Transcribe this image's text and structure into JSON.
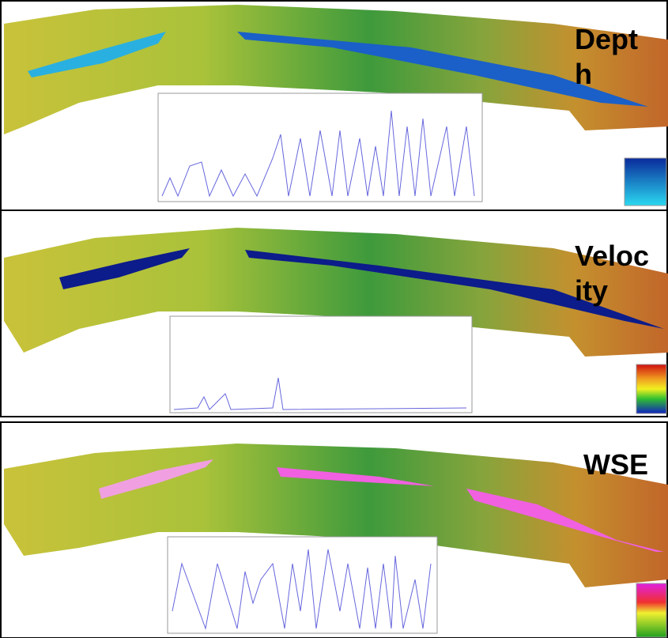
{
  "panels": [
    {
      "label": "Depth"
    },
    {
      "label": "Velocity"
    },
    {
      "label": "WSE"
    }
  ]
}
